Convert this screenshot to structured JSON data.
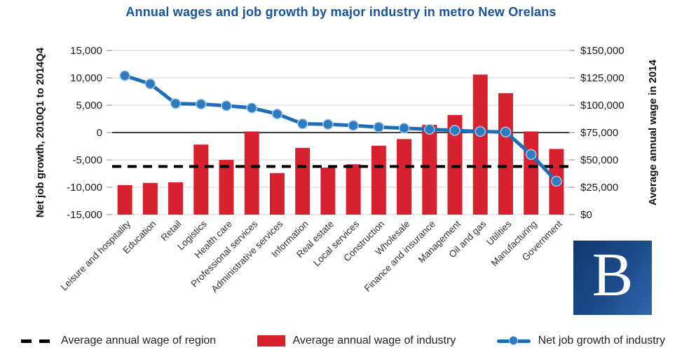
{
  "chart_data": {
    "type": "combo",
    "title": "Annual wages and job growth by major industry in metro New Orelans",
    "title_color": "#17549b",
    "categories": [
      "Leisure and hospitality",
      "Education",
      "Retail",
      "Logistics",
      "Health care",
      "Professional services",
      "Administrative services",
      "Information",
      "Real estate",
      "Local services",
      "Construction",
      "Wholesale",
      "Finance and insurance",
      "Management",
      "Oil and gas",
      "Utilities",
      "Manufacturing",
      "Government"
    ],
    "series": [
      {
        "name": "Average annual wage of industry",
        "type": "bar",
        "axis": "right",
        "color": "#d7212e",
        "values": [
          27000,
          29000,
          29500,
          64000,
          50000,
          76000,
          38000,
          61000,
          43000,
          46000,
          63000,
          69000,
          82000,
          91000,
          128000,
          111000,
          76000,
          60000
        ]
      },
      {
        "name": "Net job growth of industry",
        "type": "line",
        "axis": "left",
        "color": "#1f6db6",
        "marker_color": "#2d7bc1",
        "marker_ring_color": "#a8c9e6",
        "values": [
          10400,
          8900,
          5300,
          5200,
          4900,
          4500,
          3400,
          1600,
          1500,
          1300,
          1000,
          800,
          600,
          400,
          200,
          100,
          -4000,
          -8900
        ]
      },
      {
        "name": "Average annual wage of region",
        "type": "dashed-line",
        "axis": "right",
        "color": "#000000",
        "value": 44000
      }
    ],
    "left_axis": {
      "label": "Net job growth, 2010Q1 to 2014Q4",
      "min": -15000,
      "max": 15000,
      "step": 5000,
      "tick_labels": [
        "15,000",
        "10,000",
        "5,000",
        "0",
        "-5,000",
        "-10,000",
        "-15,000"
      ]
    },
    "right_axis": {
      "label": "Average annual wage in 2014",
      "min": 0,
      "max": 150000,
      "step": 25000,
      "tick_labels": [
        "$150,000",
        "$125,000",
        "$100,000",
        "$75,000",
        "$50,000",
        "$25,000",
        "$0"
      ]
    },
    "grid": true,
    "gridline_color": "#d9d9d9",
    "zero_line_color": "#000000",
    "legend_position": "bottom"
  },
  "logo": {
    "letter": "B",
    "background_from": "#10386e",
    "background_to": "#2f67ac",
    "letter_color": "#ffffff"
  }
}
